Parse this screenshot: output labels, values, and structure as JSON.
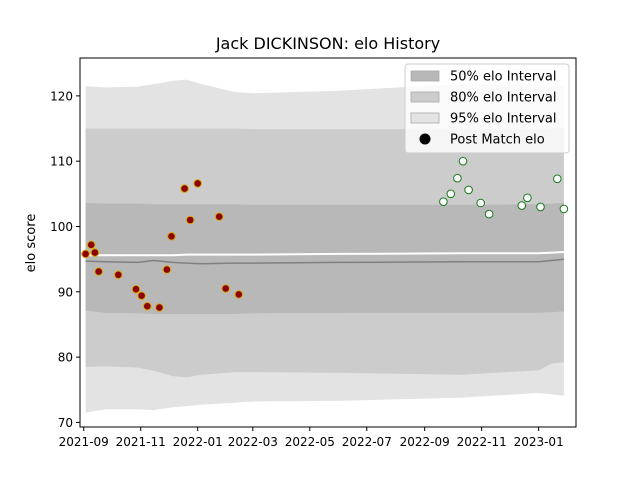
{
  "chart_data": {
    "type": "area",
    "title": "Jack DICKINSON: elo History",
    "xlabel": "",
    "ylabel": "elo score",
    "xlim": [
      "2021-08-28",
      "2023-02-10"
    ],
    "ylim": [
      69.3,
      125.8
    ],
    "x_ticks": [
      "2021-09",
      "2021-11",
      "2022-01",
      "2022-03",
      "2022-05",
      "2022-07",
      "2022-09",
      "2022-11",
      "2023-01"
    ],
    "y_ticks": [
      70,
      80,
      90,
      100,
      110,
      120
    ],
    "grid": false,
    "legend_position": "top-right",
    "legend": [
      {
        "label": "50% elo Interval",
        "swatch": "#b8b8b8"
      },
      {
        "label": "80% elo Interval",
        "swatch": "#cccccc"
      },
      {
        "label": "95% elo Interval",
        "swatch": "#e3e3e3"
      },
      {
        "label": "Post Match elo",
        "swatch": "#000000"
      }
    ],
    "band_x": [
      "2021-09-03",
      "2021-09-24",
      "2021-10-29",
      "2021-11-15",
      "2021-12-05",
      "2021-12-20",
      "2022-01-05",
      "2022-02-10",
      "2022-03-01",
      "2022-06-01",
      "2022-10-10",
      "2023-01-01",
      "2023-01-15",
      "2023-01-28"
    ],
    "intervals": [
      {
        "name": "95% elo Interval",
        "color": "#e3e3e3",
        "upper": [
          121.5,
          121.3,
          121.4,
          121.8,
          122.3,
          122.5,
          121.8,
          120.6,
          120.4,
          120.8,
          121.8,
          121.7,
          121.5,
          121.5
        ],
        "lower": [
          71.5,
          72.0,
          72.0,
          71.9,
          72.3,
          72.5,
          72.7,
          73.0,
          73.2,
          73.3,
          73.8,
          74.5,
          74.3,
          74.1
        ]
      },
      {
        "name": "80% elo Interval",
        "color": "#cccccc",
        "upper": [
          115.0,
          115.0,
          115.0,
          115.0,
          115.0,
          115.0,
          115.0,
          115.0,
          114.9,
          114.9,
          114.9,
          114.9,
          115.0,
          115.1
        ],
        "lower": [
          78.5,
          78.6,
          78.4,
          77.9,
          77.1,
          76.9,
          77.3,
          77.7,
          77.7,
          77.6,
          77.3,
          78.0,
          79.0,
          79.2
        ]
      },
      {
        "name": "50% elo Interval",
        "color": "#b8b8b8",
        "upper": [
          103.6,
          103.5,
          103.5,
          103.4,
          103.4,
          103.4,
          103.4,
          103.4,
          103.3,
          103.3,
          103.3,
          103.4,
          103.5,
          103.6
        ],
        "lower": [
          87.1,
          86.8,
          86.7,
          86.6,
          86.6,
          86.6,
          86.6,
          86.6,
          86.7,
          86.8,
          86.8,
          86.8,
          86.9,
          87.0
        ]
      }
    ],
    "median_line": {
      "color": "#808080",
      "y": [
        94.7,
        94.6,
        94.5,
        94.8,
        94.5,
        94.4,
        94.3,
        94.4,
        94.4,
        94.5,
        94.6,
        94.6,
        94.8,
        95.0
      ]
    },
    "mean_line": {
      "color": "#ffffff",
      "y": [
        95.6,
        95.6,
        95.6,
        95.6,
        95.6,
        95.7,
        95.7,
        95.7,
        95.7,
        95.8,
        95.9,
        95.9,
        96.0,
        96.1
      ]
    },
    "series": [
      {
        "name": "Post Match elo",
        "group": "2021-2022 season",
        "edge_color": "#d6a90a",
        "face_color": "#8b0000",
        "points": [
          {
            "x": "2021-09-03",
            "y": 95.8
          },
          {
            "x": "2021-09-09",
            "y": 97.2
          },
          {
            "x": "2021-09-13",
            "y": 96.0
          },
          {
            "x": "2021-09-17",
            "y": 93.1
          },
          {
            "x": "2021-10-08",
            "y": 92.6
          },
          {
            "x": "2021-10-27",
            "y": 90.4
          },
          {
            "x": "2021-11-02",
            "y": 89.4
          },
          {
            "x": "2021-11-08",
            "y": 87.8
          },
          {
            "x": "2021-11-21",
            "y": 87.6
          },
          {
            "x": "2021-11-29",
            "y": 93.4
          },
          {
            "x": "2021-12-04",
            "y": 98.5
          },
          {
            "x": "2021-12-18",
            "y": 105.8
          },
          {
            "x": "2021-12-24",
            "y": 101.0
          },
          {
            "x": "2022-01-01",
            "y": 106.6
          },
          {
            "x": "2022-01-24",
            "y": 101.5
          },
          {
            "x": "2022-01-31",
            "y": 90.5
          },
          {
            "x": "2022-02-14",
            "y": 89.6
          }
        ]
      },
      {
        "name": "Post Match elo",
        "group": "2022-2023 season",
        "edge_color": "#1a7a1a",
        "face_color": "#ffffff",
        "points": [
          {
            "x": "2022-09-21",
            "y": 103.8
          },
          {
            "x": "2022-09-29",
            "y": 105.0
          },
          {
            "x": "2022-10-06",
            "y": 107.4
          },
          {
            "x": "2022-10-12",
            "y": 110.0
          },
          {
            "x": "2022-10-18",
            "y": 105.6
          },
          {
            "x": "2022-10-31",
            "y": 103.6
          },
          {
            "x": "2022-11-09",
            "y": 101.9
          },
          {
            "x": "2022-12-14",
            "y": 103.2
          },
          {
            "x": "2022-12-20",
            "y": 104.4
          },
          {
            "x": "2023-01-03",
            "y": 103.0
          },
          {
            "x": "2023-01-21",
            "y": 107.3
          },
          {
            "x": "2023-01-28",
            "y": 102.7
          }
        ]
      }
    ]
  }
}
